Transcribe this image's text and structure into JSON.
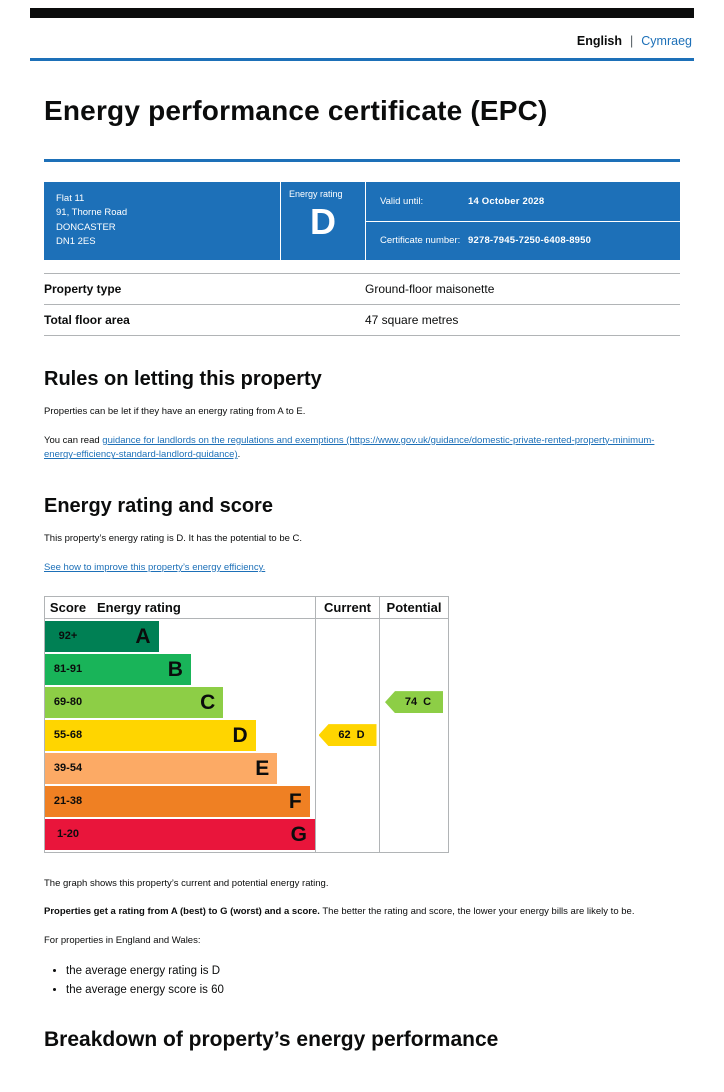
{
  "page": {
    "language_bar": {
      "current": "English",
      "separator": "|",
      "other": "Cymraeg"
    },
    "title": "Energy performance certificate (EPC)"
  },
  "summary": {
    "address_lines": [
      "Flat 11",
      "91, Thorne Road",
      "DONCASTER",
      "DN1 2ES"
    ],
    "energy_rating_label": "Energy rating",
    "energy_rating": "D",
    "valid_until_label": "Valid until:",
    "valid_until": "14 October 2028",
    "certificate_number_label": "Certificate number:",
    "certificate_number": "9278-7945-7250-6408-8950"
  },
  "property_details": {
    "rows": [
      {
        "label": "Property type",
        "value": "Ground-floor maisonette"
      },
      {
        "label": "Total floor area",
        "value": "47 square metres"
      }
    ]
  },
  "rules_section": {
    "heading": "Rules on letting this property",
    "paragraph1": "Properties can be let if they have an energy rating from A to E.",
    "paragraph2_prefix": "You can read ",
    "link_text": "guidance for landlords on the regulations and exemptions (https://www.gov.uk/guidance/domestic-private-rented-property-minimum-energy-efficiency-standard-landlord-guidance)",
    "paragraph2_suffix": "."
  },
  "rating_section": {
    "heading": "Energy rating and score",
    "paragraph": "This property’s energy rating is D. It has the potential to be C.",
    "improve_link": "See how to improve this property’s energy efficiency."
  },
  "chart_data": {
    "type": "bar",
    "title": "Energy rating and score",
    "columns": {
      "score": "Score",
      "rating": "Energy rating",
      "current": "Current",
      "potential": "Potential"
    },
    "bands": [
      {
        "score_range": "92+",
        "letter": "A",
        "color": "#008054",
        "width_pct": 25
      },
      {
        "score_range": "81-91",
        "letter": "B",
        "color": "#19b459",
        "width_pct": 37
      },
      {
        "score_range": "69-80",
        "letter": "C",
        "color": "#8dce46",
        "width_pct": 49
      },
      {
        "score_range": "55-68",
        "letter": "D",
        "color": "#ffd500",
        "width_pct": 61
      },
      {
        "score_range": "39-54",
        "letter": "E",
        "color": "#fcaa65",
        "width_pct": 69
      },
      {
        "score_range": "21-38",
        "letter": "F",
        "color": "#ef8023",
        "width_pct": 81
      },
      {
        "score_range": "1-20",
        "letter": "G",
        "color": "#e9153b",
        "width_pct": 93
      }
    ],
    "current": {
      "score": 62,
      "letter": "D",
      "band_index": 3,
      "color": "#ffd500"
    },
    "potential": {
      "score": 74,
      "letter": "C",
      "band_index": 2,
      "color": "#8dce46"
    }
  },
  "chart_notes": {
    "caption": "The graph shows this property’s current and potential energy rating.",
    "bold_lead": "Properties get a rating from A (best) to G (worst) and a score.",
    "rest": " The better the rating and score, the lower your energy bills are likely to be.",
    "england_wales": "For properties in England and Wales:",
    "bullets": [
      "the average energy rating is D",
      "the average energy score is 60"
    ]
  },
  "breakdown_section": {
    "heading": "Breakdown of property’s energy performance"
  }
}
